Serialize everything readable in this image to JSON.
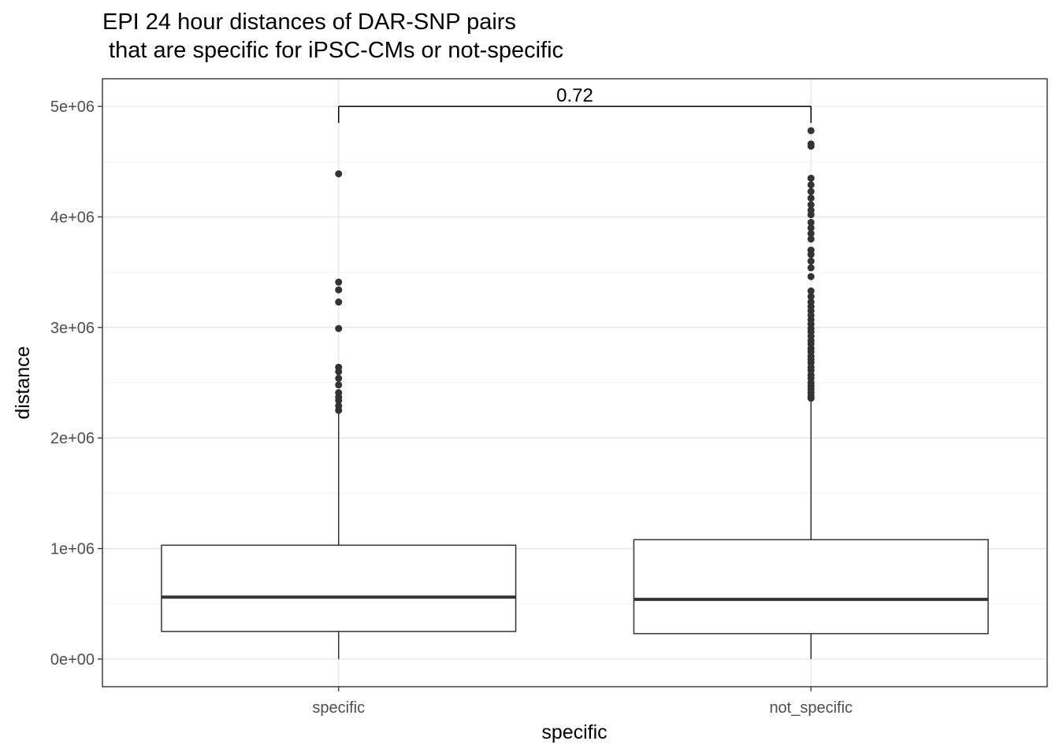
{
  "chart_data": {
    "type": "boxplot",
    "title_lines": [
      "EPI 24 hour distances of DAR-SNP pairs",
      " that are specific for iPSC-CMs or not-specific"
    ],
    "xlabel": "specific",
    "ylabel": "distance",
    "ylim": [
      -250000,
      5250000
    ],
    "yticks": [
      0,
      1000000,
      2000000,
      3000000,
      4000000,
      5000000
    ],
    "ytick_labels": [
      "0e+00",
      "1e+06",
      "2e+06",
      "3e+06",
      "4e+06",
      "5e+06"
    ],
    "categories": [
      "specific",
      "not_specific"
    ],
    "grid": true,
    "boxes": [
      {
        "category": "specific",
        "min": 0,
        "q1": 250000,
        "median": 560000,
        "q3": 1030000,
        "whisker_high": 2230000,
        "outliers": [
          2250000,
          2290000,
          2340000,
          2370000,
          2410000,
          2480000,
          2540000,
          2600000,
          2640000,
          2990000,
          3230000,
          3340000,
          3410000,
          4390000
        ]
      },
      {
        "category": "not_specific",
        "min": 0,
        "q1": 230000,
        "median": 540000,
        "q3": 1080000,
        "whisker_high": 2350000,
        "outliers": [
          2360000,
          2380000,
          2410000,
          2440000,
          2470000,
          2500000,
          2540000,
          2570000,
          2610000,
          2640000,
          2680000,
          2710000,
          2740000,
          2780000,
          2810000,
          2850000,
          2880000,
          2920000,
          2960000,
          2990000,
          3030000,
          3070000,
          3110000,
          3150000,
          3190000,
          3230000,
          3280000,
          3330000,
          3460000,
          3540000,
          3600000,
          3660000,
          3700000,
          3800000,
          3850000,
          3900000,
          3950000,
          4020000,
          4060000,
          4110000,
          4170000,
          4230000,
          4290000,
          4350000,
          4640000,
          4660000,
          4780000
        ]
      }
    ],
    "annotation": {
      "label": "0.72",
      "y": 5000000
    }
  }
}
